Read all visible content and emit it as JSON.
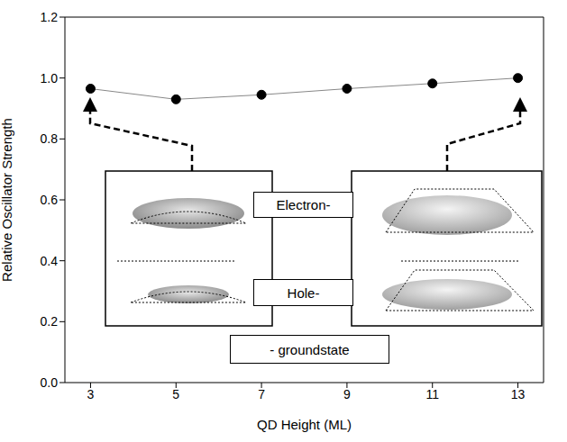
{
  "chart_data": {
    "type": "line",
    "x": [
      3,
      5,
      7,
      9,
      11,
      13
    ],
    "values": [
      0.965,
      0.93,
      0.945,
      0.965,
      0.982,
      1.0
    ],
    "color": "#000000",
    "marker": "circle",
    "x_label": "QD Height (ML)",
    "y_label": "Relative Oscillator Strength",
    "xlim": [
      2.4,
      13.6
    ],
    "xticks": [
      3,
      5,
      7,
      9,
      11,
      13
    ],
    "ylim": [
      0,
      1.2
    ],
    "yticks": [
      {
        "value": 0,
        "label": "0.0"
      },
      {
        "value": 0.2,
        "label": "0.2"
      },
      {
        "value": 0.4,
        "label": "0.4"
      },
      {
        "value": 0.6,
        "label": "0.6"
      },
      {
        "value": 0.8,
        "label": "0.8"
      },
      {
        "value": 1.0,
        "label": "1.0"
      },
      {
        "value": 1.2,
        "label": "1.2"
      }
    ],
    "annotations": [
      "Electron-",
      "Hole-",
      "- groundstate"
    ],
    "grid": false
  }
}
